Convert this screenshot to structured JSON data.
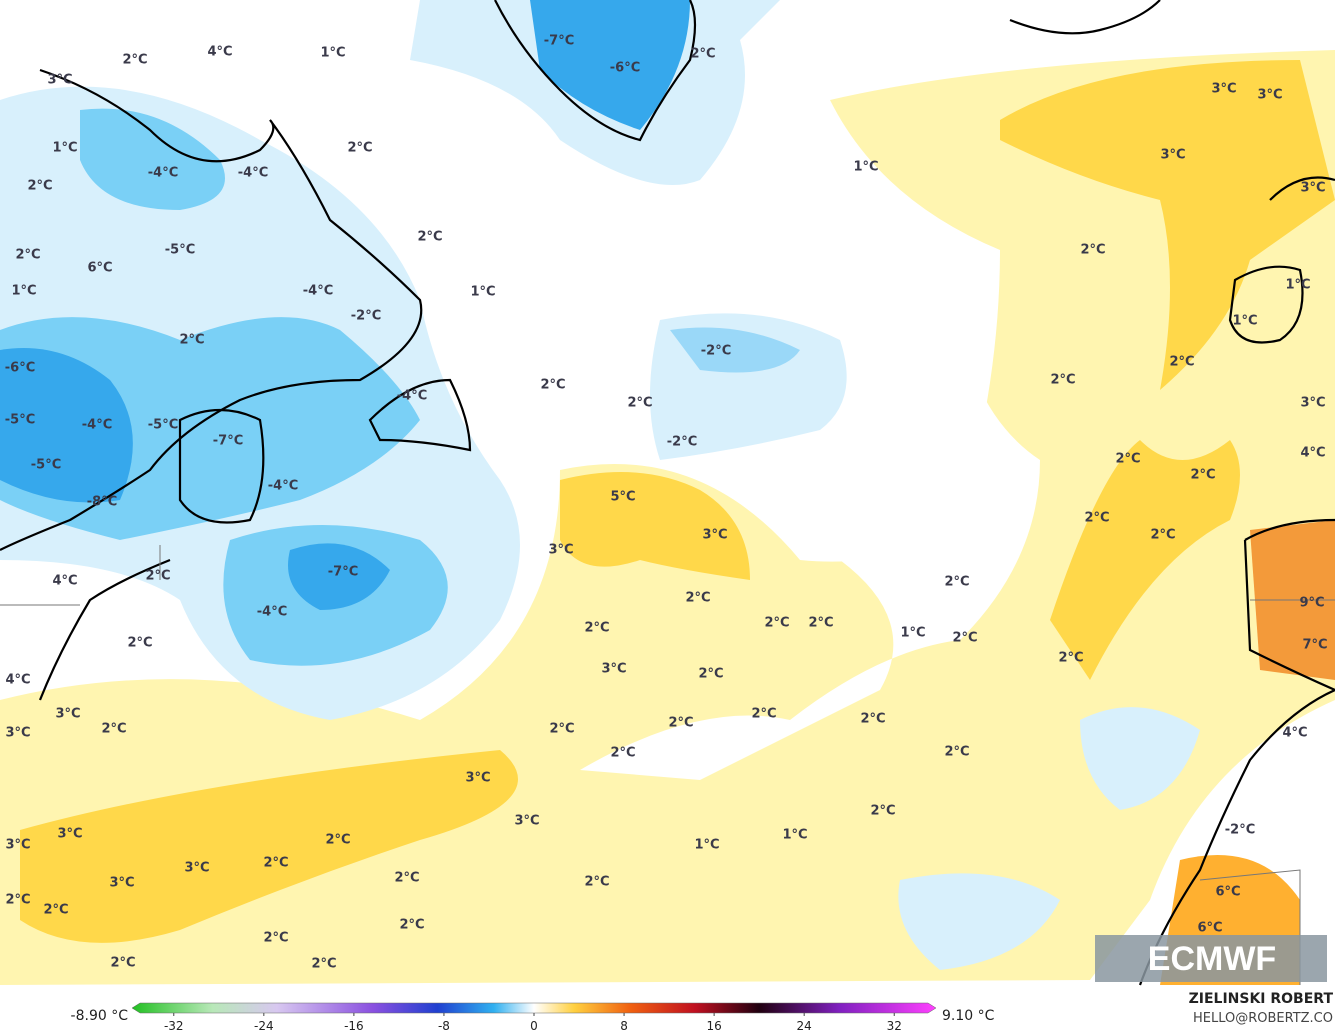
{
  "map": {
    "labels": [
      "2°C",
      "4°C",
      "1°C",
      "3°C",
      "1°C",
      "2°C",
      "2°C",
      "-4°C",
      "-4°C",
      "2°C",
      "-5°C",
      "6°C",
      "2°C",
      "-4°C",
      "1°C",
      "-2°C",
      "1°C",
      "2°C",
      "-6°C",
      "2°C",
      "2°C",
      "-4°C",
      "-4°C",
      "-5°C",
      "-5°C",
      "-7°C",
      "-5°C",
      "-4°C",
      "-8°C",
      "-2°C",
      "5°C",
      "3°C",
      "3°C",
      "4°C",
      "2°C",
      "-7°C",
      "-4°C",
      "2°C",
      "2°C",
      "2°C",
      "2°C",
      "1°C",
      "2°C",
      "2°C",
      "4°C",
      "3°C",
      "2°C",
      "3°C",
      "2°C",
      "3°C",
      "2°C",
      "2°C",
      "2°C",
      "2°C",
      "2°C",
      "2°C",
      "3°C",
      "3°C",
      "2°C",
      "3°C",
      "2°C",
      "1°C",
      "1°C",
      "3°C",
      "2°C",
      "3°C",
      "3°C",
      "2°C",
      "2°C",
      "2°C",
      "2°C",
      "2°C",
      "2°C",
      "2°C",
      "2°C",
      "-7°C",
      "-6°C",
      "2°C",
      "1°C",
      "-2°C",
      "3°C",
      "3°C",
      "3°C",
      "3°C",
      "2°C",
      "1°C",
      "1°C",
      "2°C",
      "2°C",
      "3°C",
      "4°C",
      "2°C",
      "2°C",
      "2°C",
      "2°C",
      "2°C",
      "9°C",
      "7°C",
      "2°C",
      "4°C",
      "-2°C",
      "6°C",
      "6°C"
    ],
    "colorbar": {
      "min_label": "-8.90 °C",
      "max_label": "9.10 °C",
      "lim": [
        -35,
        35
      ],
      "ticks": [
        -32,
        -24,
        -16,
        -8,
        0,
        8,
        16,
        24,
        32
      ]
    },
    "logo": "ECMWF",
    "author": "ZIELINSKI ROBERT",
    "contact": "HELLO@ROBERTZ.CO"
  }
}
